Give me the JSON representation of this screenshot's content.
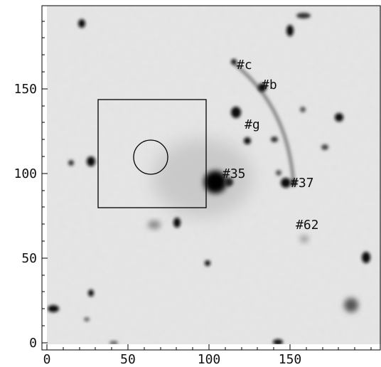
{
  "image": {
    "kind": "grayscale astronomical image of a galaxy cluster field with a gravitational arc",
    "colormap": "inverted grayscale (dark = bright sources)"
  },
  "axes": {
    "x_ticks": [
      "0",
      "50",
      "100",
      "150"
    ],
    "y_ticks": [
      "0",
      "50",
      "100",
      "150"
    ],
    "xlim": [
      0,
      200
    ],
    "ylim": [
      0,
      200
    ]
  },
  "labels": {
    "c": "#c",
    "b": "#b",
    "g": "#g",
    "n35": "#35",
    "n37": "#37",
    "n62": "#62"
  },
  "overlays": {
    "box": {
      "x": [
        34,
        96
      ],
      "y": [
        80,
        144
      ]
    },
    "circle": {
      "center": [
        65,
        110
      ],
      "radius": 10
    }
  }
}
